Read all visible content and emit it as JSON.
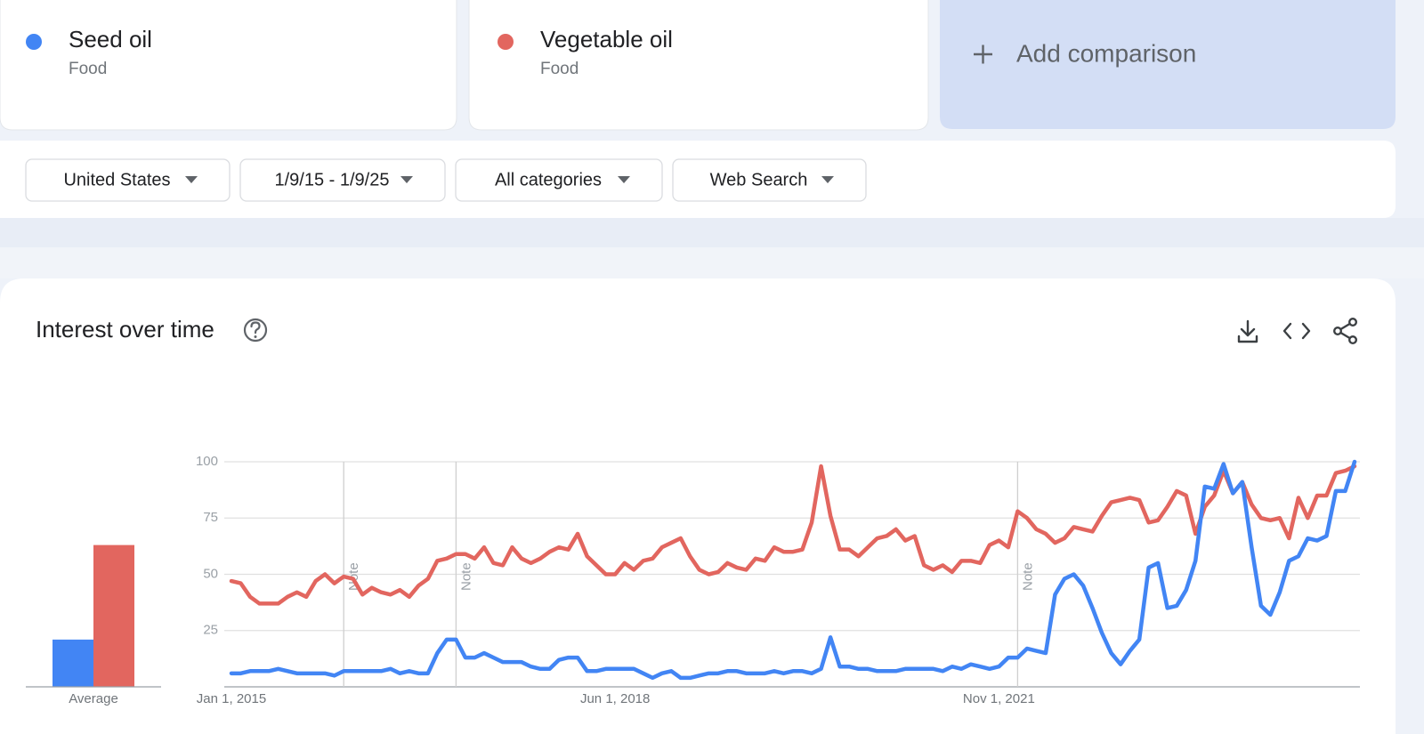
{
  "comparisons": [
    {
      "category": "Food"
    },
    {
      "category": "Food"
    }
  ],
  "add_comparison": "Add comparison",
  "filters": [
    "United States",
    "1/9/15 - 1/9/25",
    "All categories",
    "Web Search"
  ],
  "section_title": "Interest over time",
  "chart_data": [
    {
      "type": "bar",
      "categories": [
        "Average"
      ],
      "series": [
        {
          "color": "#4285f4",
          "values": [
            21
          ]
        },
        {
          "color": "#e2665f",
          "values": [
            63
          ]
        }
      ],
      "ylim": [
        0,
        100
      ]
    },
    {
      "type": "line",
      "categories": [
        "Jan 1, 2015",
        null,
        null,
        null,
        null,
        null,
        null,
        null,
        null,
        null,
        null,
        null,
        null,
        null,
        null,
        null,
        null,
        null,
        null,
        null,
        null,
        null,
        null,
        null,
        null,
        null,
        null,
        null,
        null,
        null,
        null,
        null,
        null,
        null,
        null,
        null,
        null,
        null,
        null,
        null,
        null,
        "Jun 1, 2018",
        null,
        null,
        null,
        null,
        null,
        null,
        null,
        null,
        null,
        null,
        null,
        null,
        null,
        null,
        null,
        null,
        null,
        null,
        null,
        null,
        null,
        null,
        null,
        null,
        null,
        null,
        null,
        null,
        null,
        null,
        null,
        null,
        null,
        null,
        null,
        null,
        null,
        null,
        null,
        null,
        "Nov 1, 2021",
        null,
        null,
        null,
        null,
        null,
        null,
        null,
        null,
        null,
        null,
        null,
        null,
        null,
        null,
        null,
        null,
        null,
        null,
        null,
        null,
        null,
        null,
        null,
        null,
        null,
        null,
        null,
        null,
        null,
        null,
        null,
        null,
        null,
        null,
        null,
        null,
        null,
        null
      ],
      "series": [
        {
          "name": "Seed oil",
          "color": "#4285f4",
          "values": [
            6,
            6,
            7,
            7,
            7,
            8,
            7,
            6,
            6,
            6,
            6,
            5,
            7,
            7,
            7,
            7,
            7,
            8,
            6,
            7,
            6,
            6,
            15,
            21,
            21,
            13,
            13,
            15,
            13,
            11,
            11,
            11,
            9,
            8,
            8,
            12,
            13,
            13,
            7,
            7,
            8,
            8,
            8,
            8,
            6,
            4,
            6,
            7,
            4,
            4,
            5,
            6,
            6,
            7,
            7,
            6,
            6,
            6,
            7,
            6,
            7,
            7,
            6,
            8,
            22,
            9,
            9,
            8,
            8,
            7,
            7,
            7,
            8,
            8,
            8,
            8,
            7,
            9,
            8,
            10,
            9,
            8,
            9,
            13,
            13,
            17,
            16,
            15,
            41,
            48,
            50,
            45,
            35,
            24,
            15,
            10,
            16,
            21,
            53,
            55,
            35,
            36,
            43,
            56,
            89,
            88,
            99,
            86,
            91,
            62,
            36,
            32,
            42,
            56,
            58,
            66,
            65,
            67,
            87,
            87,
            100
          ]
        },
        {
          "name": "Vegetable oil",
          "color": "#e2665f",
          "values": [
            47,
            46,
            40,
            37,
            37,
            37,
            40,
            42,
            40,
            47,
            50,
            46,
            49,
            48,
            41,
            44,
            42,
            41,
            43,
            40,
            45,
            48,
            56,
            57,
            59,
            59,
            57,
            62,
            55,
            54,
            62,
            57,
            55,
            57,
            60,
            62,
            61,
            68,
            58,
            54,
            50,
            50,
            55,
            52,
            56,
            57,
            62,
            64,
            66,
            58,
            52,
            50,
            51,
            55,
            53,
            52,
            57,
            56,
            62,
            60,
            60,
            61,
            73,
            98,
            76,
            61,
            61,
            58,
            62,
            66,
            67,
            70,
            65,
            67,
            54,
            52,
            54,
            51,
            56,
            56,
            55,
            63,
            65,
            62,
            78,
            75,
            70,
            68,
            64,
            66,
            71,
            70,
            69,
            76,
            82,
            83,
            84,
            83,
            73,
            74,
            80,
            87,
            85,
            68,
            80,
            85,
            96,
            86,
            91,
            81,
            75,
            74,
            75,
            66,
            84,
            75,
            85,
            85,
            95,
            96,
            98
          ]
        }
      ],
      "ylim": [
        0,
        100
      ],
      "yticks": [
        25,
        50,
        75,
        100
      ],
      "grid": true,
      "annotations": [
        {
          "text": "Note",
          "at": 12
        },
        {
          "text": "Note",
          "at": 24
        },
        {
          "text": "Note",
          "at": 84
        }
      ]
    }
  ]
}
